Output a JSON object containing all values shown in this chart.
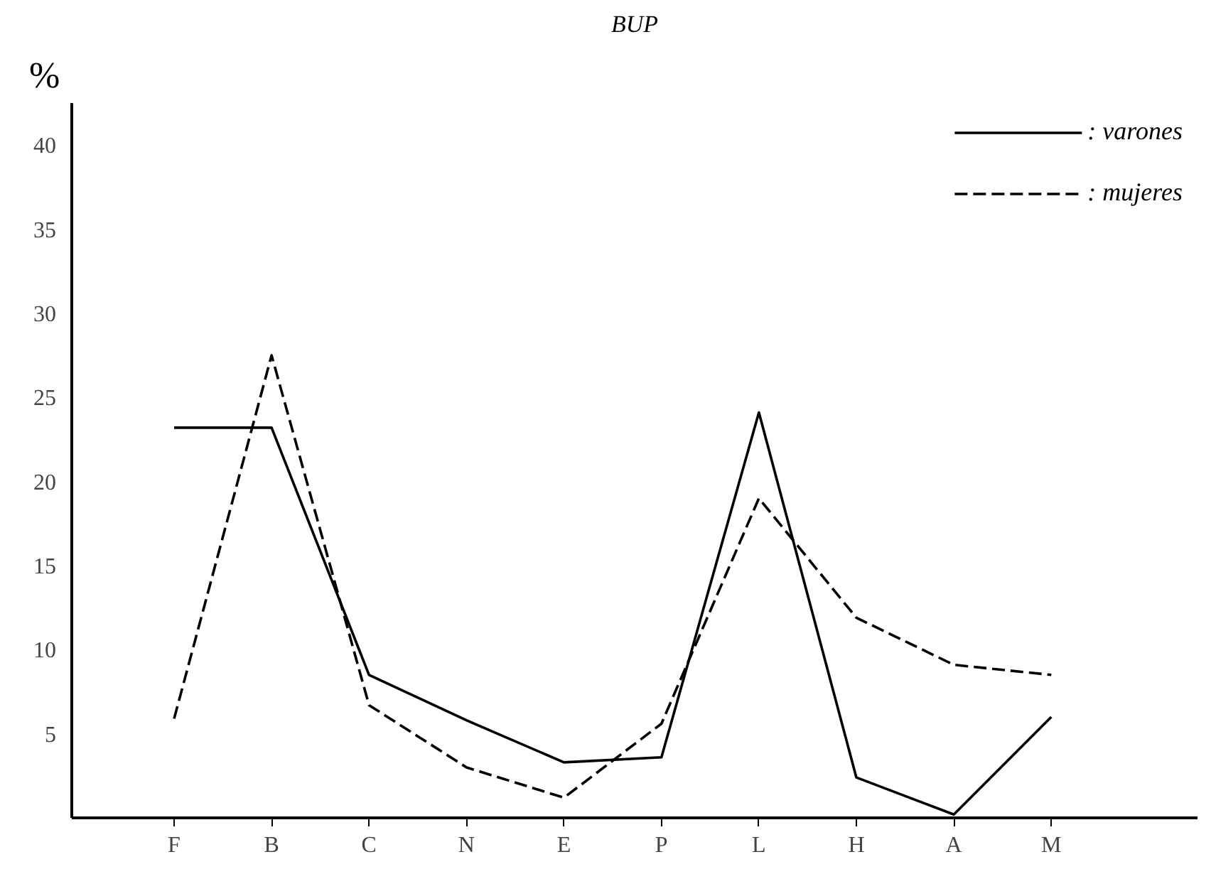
{
  "chart_data": {
    "type": "line",
    "title": "BUP",
    "ylabel": "%",
    "categories": [
      "F",
      "B",
      "C",
      "N",
      "E",
      "P",
      "L",
      "H",
      "A",
      "M"
    ],
    "series": [
      {
        "name": ": varones",
        "color": "#000000",
        "line_style": "solid",
        "values": [
          23.2,
          23.2,
          8.5,
          5.8,
          3.3,
          3.6,
          24.1,
          2.4,
          0.2,
          6.0
        ]
      },
      {
        "name": ": mujeres",
        "color": "#000000",
        "line_style": "dashed",
        "values": [
          5.9,
          27.5,
          6.7,
          3.0,
          1.2,
          5.6,
          19.0,
          11.9,
          9.1,
          8.5
        ]
      }
    ],
    "ylim": [
      0,
      42.5
    ],
    "yticks": [
      5,
      10,
      15,
      20,
      25,
      30,
      35,
      40
    ],
    "grid": false,
    "legend": "top right",
    "marker": "none"
  }
}
